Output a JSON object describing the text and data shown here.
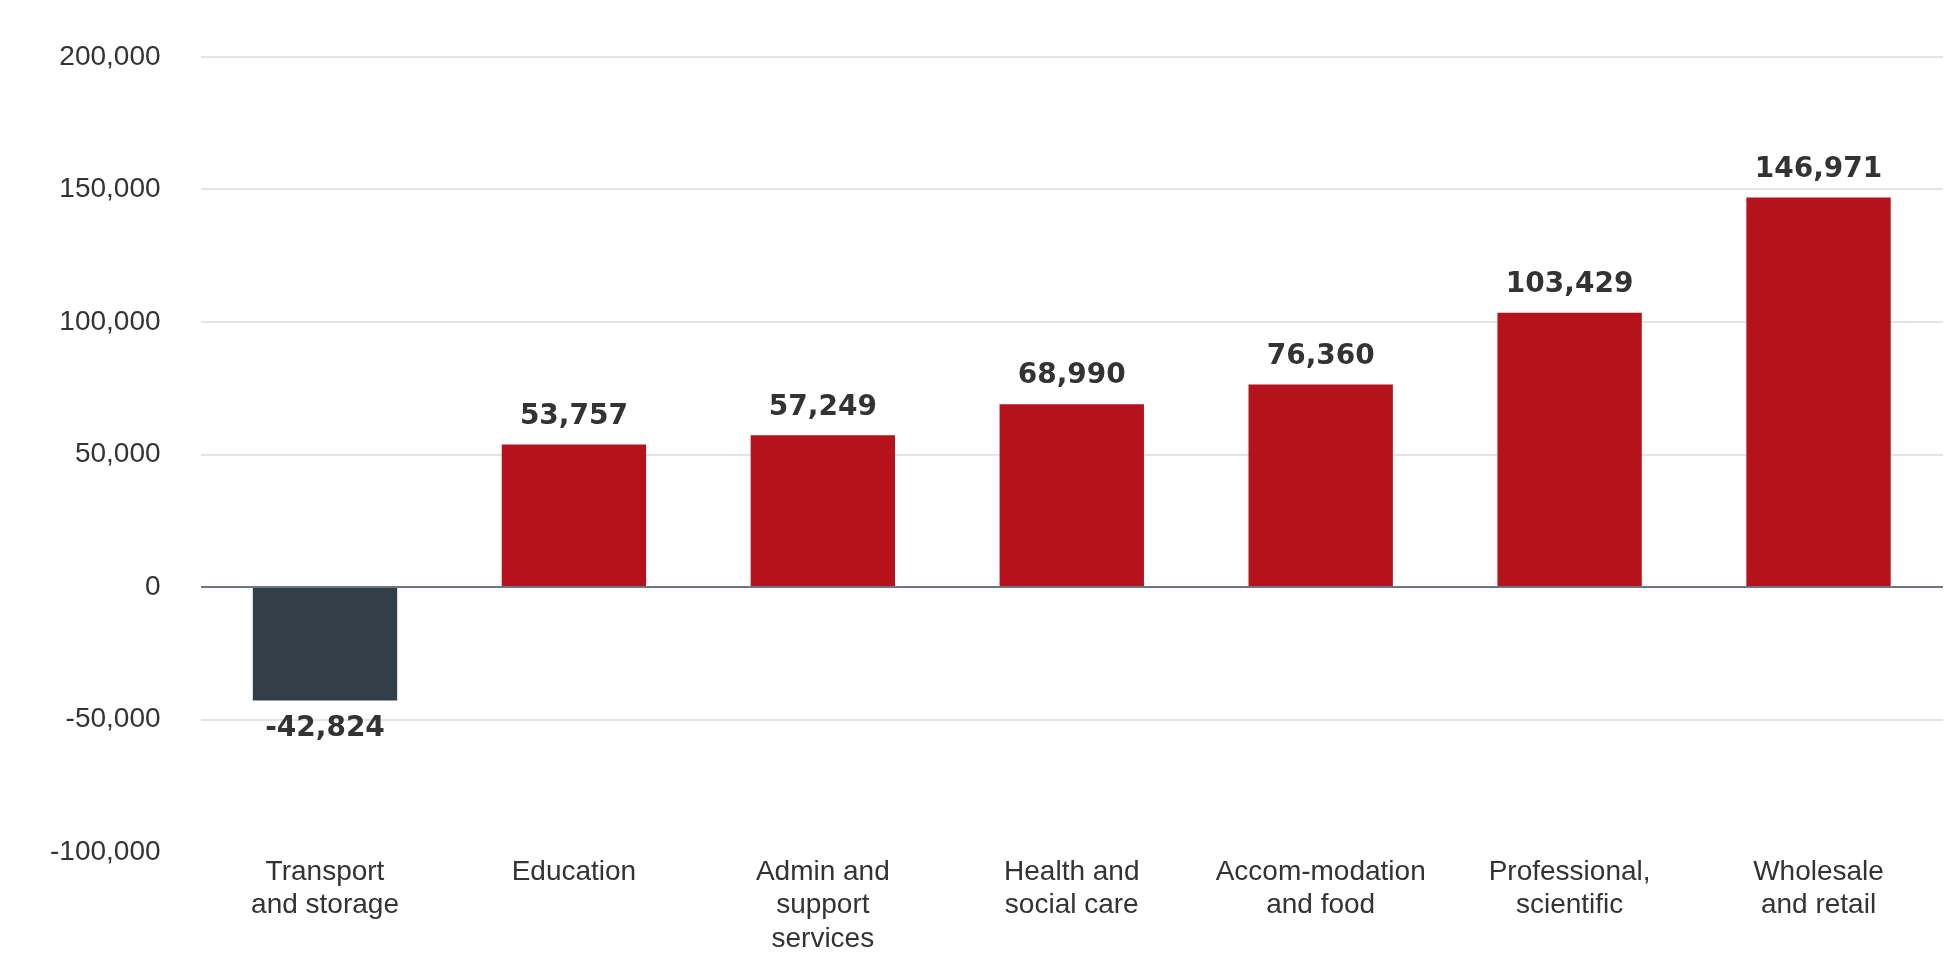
{
  "chart_data": {
    "type": "bar",
    "categories": [
      "Transport and storage",
      "Education",
      "Admin and support services",
      "Health and social care",
      "Accom-modation and food",
      "Professional, scientific",
      "Wholesale and retail"
    ],
    "values": [
      -42824,
      53757,
      57249,
      68990,
      76360,
      103429,
      146971
    ],
    "colors": [
      "#333f48",
      "#b5121b",
      "#b5121b",
      "#b5121b",
      "#b5121b",
      "#b5121b",
      "#b5121b"
    ],
    "value_labels": [
      "-42,824",
      "53,757",
      "57,249",
      "68,990",
      "76,360",
      "103,429",
      "146,971"
    ],
    "ylim": [
      -100000,
      200000
    ],
    "yticks": [
      {
        "value": -100000,
        "label": "-100,000"
      },
      {
        "value": -50000,
        "label": "-50,000"
      },
      0,
      {
        "value": 50000,
        "label": "50,000"
      },
      {
        "value": 100000,
        "label": "100,000"
      },
      {
        "value": 150000,
        "label": "150,000"
      },
      {
        "value": 200000,
        "label": "200,000"
      }
    ],
    "grid": "y",
    "legend": false
  }
}
